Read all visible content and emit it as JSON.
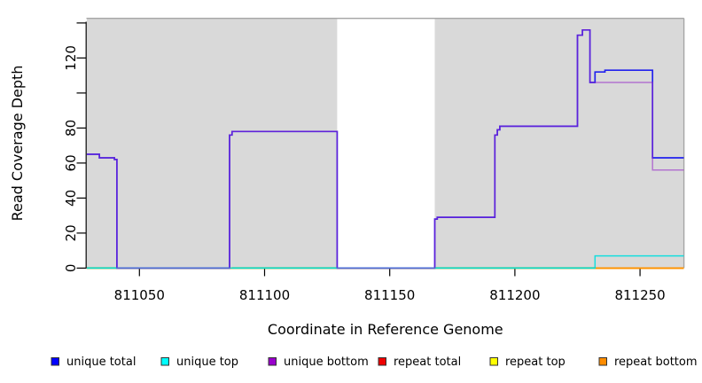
{
  "chart_data": {
    "type": "line",
    "subtype": "step",
    "title": "",
    "xlabel": "Coordinate in Reference Genome",
    "ylabel": "Read Coverage Depth",
    "xlim": [
      811029,
      811267.5
    ],
    "ylim": [
      0,
      142
    ],
    "grid": false,
    "x_ticks": [
      811050,
      811100,
      811150,
      811200,
      811250
    ],
    "y_ticks": [
      {
        "value": 0,
        "label": "0"
      },
      {
        "value": 20,
        "label": "20"
      },
      {
        "value": 40,
        "label": "40"
      },
      {
        "value": 60,
        "label": "60"
      },
      {
        "value": 80,
        "label": "80"
      },
      {
        "value": 100,
        "label": ""
      },
      {
        "value": 120,
        "label": "120"
      },
      {
        "value": 140,
        "label": ""
      }
    ],
    "background": {
      "plot_fill": "#d9d9d9",
      "border_color": "#a6a6a6",
      "gap_band": {
        "from": 811129,
        "to": 811168,
        "fill": "#ffffff"
      }
    },
    "series": [
      {
        "name": "unique total",
        "color": "#0000ff",
        "steps": [
          [
            811029,
            65
          ],
          [
            811034,
            63
          ],
          [
            811040,
            62
          ],
          [
            811041,
            0
          ],
          [
            811086,
            76
          ],
          [
            811087,
            78
          ],
          [
            811129,
            0
          ],
          [
            811168,
            28
          ],
          [
            811169,
            29
          ],
          [
            811192,
            76
          ],
          [
            811193,
            79
          ],
          [
            811194,
            81
          ],
          [
            811225,
            133
          ],
          [
            811227,
            136
          ],
          [
            811230,
            106
          ],
          [
            811232,
            112
          ],
          [
            811236,
            113
          ],
          [
            811255,
            63
          ],
          [
            811267.5,
            63
          ]
        ]
      },
      {
        "name": "unique top",
        "color": "#00ffff",
        "steps": [
          [
            811029,
            0
          ],
          [
            811232,
            7
          ],
          [
            811267.5,
            7
          ]
        ]
      },
      {
        "name": "unique bottom",
        "color": "#9900cc",
        "steps": [
          [
            811029,
            65
          ],
          [
            811034,
            63
          ],
          [
            811040,
            62
          ],
          [
            811041,
            0
          ],
          [
            811086,
            76
          ],
          [
            811087,
            78
          ],
          [
            811129,
            0
          ],
          [
            811168,
            28
          ],
          [
            811169,
            29
          ],
          [
            811192,
            76
          ],
          [
            811193,
            79
          ],
          [
            811194,
            81
          ],
          [
            811225,
            133
          ],
          [
            811227,
            136
          ],
          [
            811230,
            106
          ],
          [
            811255,
            56
          ],
          [
            811267.5,
            56
          ]
        ]
      },
      {
        "name": "repeat total",
        "color": "#ee0000",
        "steps": [
          [
            811029,
            0
          ],
          [
            811267.5,
            0
          ]
        ]
      },
      {
        "name": "repeat top",
        "color": "#ffff00",
        "steps": [
          [
            811029,
            0
          ],
          [
            811267.5,
            0
          ]
        ]
      },
      {
        "name": "repeat bottom",
        "color": "#ff8c00",
        "steps": [
          [
            811029,
            0
          ],
          [
            811267.5,
            0
          ]
        ]
      }
    ],
    "baseline_blend_segments": [
      {
        "from": 811029,
        "to": 811041,
        "color": "#7cc87c"
      },
      {
        "from": 811087,
        "to": 811129,
        "color": "#7cc87c"
      },
      {
        "from": 811168,
        "to": 811232,
        "color": "#7cc87c"
      }
    ],
    "legend": {
      "position": "bottom",
      "items": [
        {
          "label": "unique total",
          "color": "#0000ff"
        },
        {
          "label": "unique top",
          "color": "#00ffff"
        },
        {
          "label": "unique bottom",
          "color": "#9900cc"
        },
        {
          "label": "repeat total",
          "color": "#ee0000"
        },
        {
          "label": "repeat top",
          "color": "#ffff00"
        },
        {
          "label": "repeat bottom",
          "color": "#ff8c00"
        }
      ]
    }
  }
}
